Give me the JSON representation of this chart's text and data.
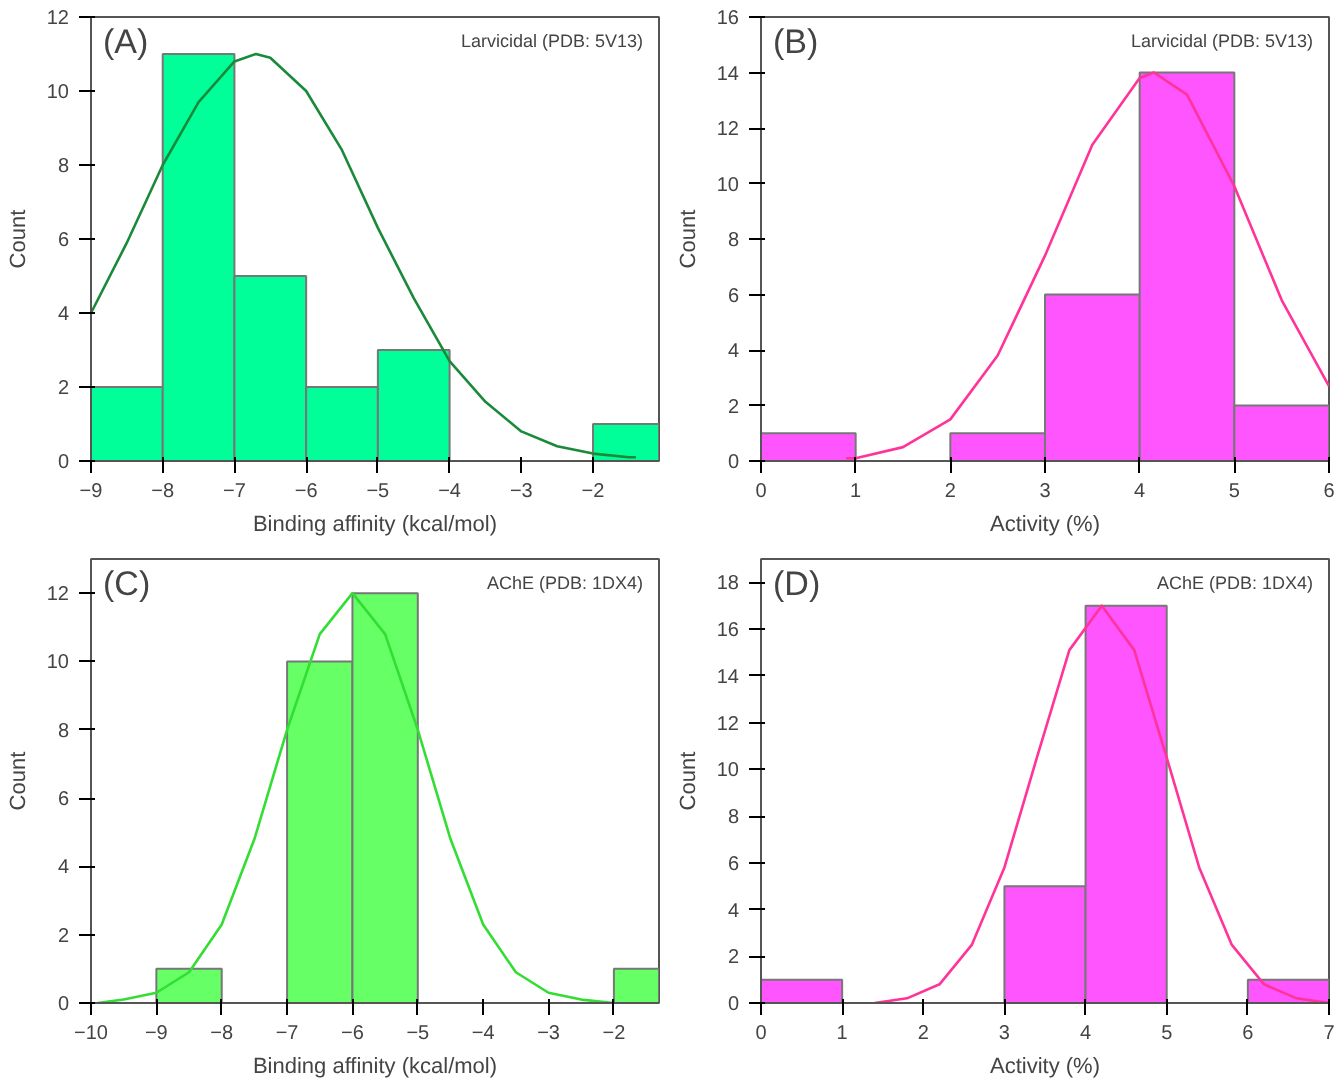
{
  "chart_data": [
    {
      "type": "histogram",
      "xlabel": "Binding affinity (kcal/mol)",
      "ylabel": "Count",
      "annotations": [
        "(A)",
        "Larvicidal (PDB: 5V13)"
      ],
      "bins": [
        -9,
        -8,
        -7,
        -6,
        -5,
        -4,
        -2,
        -1.08
      ],
      "xlim": [
        -9,
        -1.08
      ],
      "xticks": [
        -9,
        -8,
        -7,
        -6,
        -5,
        -4,
        -3,
        -2
      ],
      "ylim": [
        0,
        12
      ],
      "yticks": [
        0,
        2,
        4,
        6,
        8,
        10,
        12
      ],
      "grid": false,
      "series": [
        {
          "color": "#00ff99",
          "values": [
            2,
            11,
            5,
            2,
            3,
            0,
            1
          ]
        },
        {
          "type": "line",
          "color": "#1a8a3a",
          "x": [
            -9,
            -8.5,
            -8,
            -7.5,
            -7,
            -6.7,
            -6.5,
            -6,
            -5.5,
            -5,
            -4.5,
            -4,
            -3.5,
            -3,
            -2.5,
            -2,
            -1.5,
            -1.4
          ],
          "values": [
            4.0,
            5.9,
            8.0,
            9.7,
            10.8,
            11,
            10.9,
            10.0,
            8.4,
            6.3,
            4.4,
            2.7,
            1.6,
            0.8,
            0.4,
            0.2,
            0.1,
            0.1
          ]
        }
      ]
    },
    {
      "type": "histogram",
      "xlabel": "Activity (%)",
      "ylabel": "Count",
      "annotations": [
        "(B)",
        "Larvicidal (PDB: 5V13)"
      ],
      "bins": [
        0,
        1,
        2,
        3,
        4,
        5,
        6
      ],
      "xlim": [
        0,
        6
      ],
      "xticks": [
        0,
        1,
        2,
        3,
        4,
        5,
        6
      ],
      "ylim": [
        0,
        16
      ],
      "yticks": [
        0,
        2,
        4,
        6,
        8,
        10,
        12,
        14,
        16
      ],
      "grid": false,
      "series": [
        {
          "color": "#ff55ff",
          "values": [
            1,
            0,
            1,
            6,
            14,
            2
          ]
        },
        {
          "type": "line",
          "color": "#ff3399",
          "x": [
            0.9,
            1,
            1.5,
            2,
            2.5,
            3,
            3.5,
            4,
            4.15,
            4.5,
            5,
            5.5,
            6
          ],
          "values": [
            0.1,
            0.1,
            0.5,
            1.5,
            3.8,
            7.4,
            11.4,
            13.8,
            14,
            13.2,
            9.9,
            5.8,
            2.7
          ]
        }
      ]
    },
    {
      "type": "histogram",
      "xlabel": "Binding affinity (kcal/mol)",
      "ylabel": "Count",
      "annotations": [
        "(C)",
        "AChE (PDB: 1DX4)"
      ],
      "bins": [
        -9,
        -8,
        -7,
        -6,
        -5,
        -2,
        -1.31
      ],
      "xlim": [
        -10,
        -1.31
      ],
      "xticks": [
        -10,
        -9,
        -8,
        -7,
        -6,
        -5,
        -4,
        -3,
        -2
      ],
      "ylim": [
        0,
        13
      ],
      "yticks": [
        0,
        2,
        4,
        6,
        8,
        10,
        12
      ],
      "grid": false,
      "series": [
        {
          "color": "#66ff66",
          "values": [
            1,
            0,
            10,
            12,
            0,
            1
          ]
        },
        {
          "type": "line",
          "color": "#33dd33",
          "x": [
            -9.9,
            -9.5,
            -9,
            -8.5,
            -8,
            -7.5,
            -7,
            -6.5,
            -6,
            -5.5,
            -5,
            -4.5,
            -4,
            -3.5,
            -3,
            -2.5,
            -2
          ],
          "values": [
            0.0,
            0.1,
            0.3,
            0.9,
            2.3,
            4.8,
            8.0,
            10.8,
            12,
            10.8,
            8.0,
            4.8,
            2.3,
            0.9,
            0.3,
            0.1,
            0.0
          ]
        }
      ]
    },
    {
      "type": "histogram",
      "xlabel": "Activity (%)",
      "ylabel": "Count",
      "annotations": [
        "(D)",
        "AChE (PDB: 1DX4)"
      ],
      "bins": [
        0,
        1,
        2,
        3,
        4,
        5,
        6,
        7
      ],
      "xlim": [
        0,
        7
      ],
      "xticks": [
        0,
        1,
        2,
        3,
        4,
        5,
        6,
        7
      ],
      "ylim": [
        0,
        19
      ],
      "yticks": [
        0,
        2,
        4,
        6,
        8,
        10,
        12,
        14,
        16,
        18
      ],
      "grid": false,
      "series": [
        {
          "color": "#ff55ff",
          "values": [
            1,
            0,
            0,
            5,
            17,
            0,
            1
          ]
        },
        {
          "type": "line",
          "color": "#ff3399",
          "x": [
            1.4,
            1.8,
            2.2,
            2.6,
            3,
            3.4,
            3.8,
            4.2,
            4.6,
            5,
            5.4,
            5.8,
            6.2,
            6.6,
            7
          ],
          "values": [
            0.0,
            0.2,
            0.8,
            2.5,
            5.8,
            10.5,
            15.1,
            17,
            15.1,
            10.5,
            5.8,
            2.5,
            0.8,
            0.2,
            0.0
          ]
        }
      ]
    }
  ]
}
